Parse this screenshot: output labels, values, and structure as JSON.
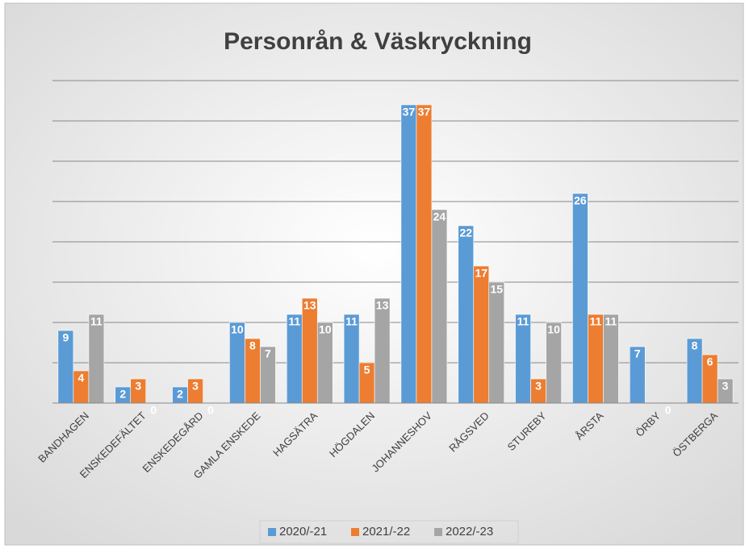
{
  "chart_data": {
    "type": "bar",
    "title": "Personrån & Väskryckning",
    "categories": [
      "BANDHAGEN",
      "ENSKEDEFÄLTET",
      "ENSKEDEGÅRD",
      "GAMLA ENSKEDE",
      "HAGSÄTRA",
      "HÖGDALEN",
      "JOHANNESHOV",
      "RÅGSVED",
      "STUREBY",
      "ÅRSTA",
      "ÖRBY",
      "ÖSTBERGA"
    ],
    "series": [
      {
        "name": "2020/-21",
        "color": "#5b9bd5",
        "values": [
          9,
          2,
          2,
          10,
          11,
          11,
          37,
          22,
          11,
          26,
          7,
          8
        ]
      },
      {
        "name": "2021/-22",
        "color": "#ed7d31",
        "values": [
          4,
          3,
          3,
          8,
          13,
          5,
          37,
          17,
          3,
          11,
          null,
          6
        ]
      },
      {
        "name": "2022/-23",
        "color": "#a5a5a5",
        "values": [
          11,
          0,
          0,
          7,
          10,
          13,
          24,
          15,
          10,
          11,
          0,
          3
        ]
      }
    ],
    "ylim": [
      0,
      40
    ],
    "yticks": [
      0,
      5,
      10,
      15,
      20,
      25,
      30,
      35,
      40
    ],
    "grid": true,
    "legend": "bottom"
  }
}
